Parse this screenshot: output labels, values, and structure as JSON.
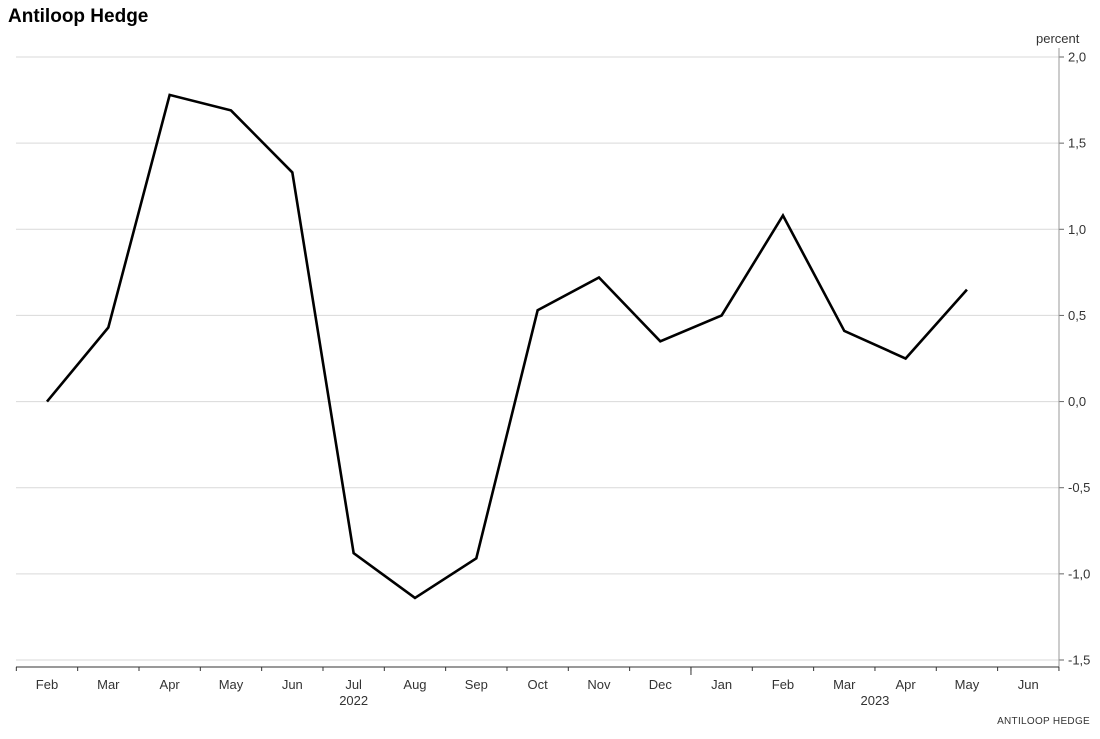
{
  "header": {
    "title": "Antiloop Hedge",
    "unit": "percent"
  },
  "footer": {
    "source": "ANTILOOP HEDGE"
  },
  "chart_data": {
    "type": "line",
    "title": "Antiloop Hedge",
    "ylabel": "percent",
    "ylim": [
      -1.5,
      2.0
    ],
    "yticks": [
      "2,0",
      "1,5",
      "1,0",
      "0,5",
      "0,0",
      "-0,5",
      "-1,0",
      "-1,5"
    ],
    "categories": [
      "Feb",
      "Mar",
      "Apr",
      "May",
      "Jun",
      "Jul",
      "Aug",
      "Sep",
      "Oct",
      "Nov",
      "Dec",
      "Jan",
      "Feb",
      "Mar",
      "Apr",
      "May",
      "Jun"
    ],
    "year_labels": [
      "2022",
      "2023"
    ],
    "series": [
      {
        "color": "#000000",
        "values": [
          0.0,
          0.43,
          1.78,
          1.69,
          1.33,
          -0.88,
          -1.14,
          -0.91,
          0.53,
          0.72,
          0.35,
          0.5,
          1.08,
          0.41,
          0.25,
          0.65,
          null
        ]
      }
    ],
    "grid": true,
    "y_axis_position": "right"
  }
}
